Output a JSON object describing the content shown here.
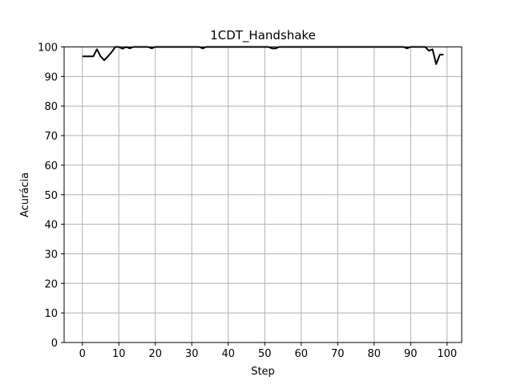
{
  "chart_data": {
    "type": "line",
    "title": "1CDT_Handshake",
    "xlabel": "Step",
    "ylabel": "Acurácia",
    "xlim": [
      -5,
      104
    ],
    "ylim": [
      0,
      100
    ],
    "xticks": [
      0,
      10,
      20,
      30,
      40,
      50,
      60,
      70,
      80,
      90,
      100
    ],
    "yticks": [
      0,
      10,
      20,
      30,
      40,
      50,
      60,
      70,
      80,
      90,
      100
    ],
    "grid": true,
    "series": [
      {
        "color": "#000000",
        "x": [
          0,
          1,
          2,
          3,
          4,
          5,
          6,
          7,
          8,
          9,
          10,
          11,
          12,
          13,
          14,
          15,
          16,
          17,
          18,
          19,
          20,
          21,
          22,
          23,
          24,
          25,
          26,
          27,
          28,
          29,
          30,
          31,
          32,
          33,
          34,
          35,
          36,
          37,
          38,
          39,
          40,
          41,
          42,
          43,
          44,
          45,
          46,
          47,
          48,
          49,
          50,
          51,
          52,
          53,
          54,
          55,
          56,
          57,
          58,
          59,
          60,
          61,
          62,
          63,
          64,
          65,
          66,
          67,
          68,
          69,
          70,
          71,
          72,
          73,
          74,
          75,
          76,
          77,
          78,
          79,
          80,
          81,
          82,
          83,
          84,
          85,
          86,
          87,
          88,
          89,
          90,
          91,
          92,
          93,
          94,
          95,
          96,
          97,
          98,
          99
        ],
        "y": [
          96.8,
          96.8,
          96.8,
          96.8,
          99.2,
          96.8,
          95.5,
          96.8,
          98.2,
          100,
          100,
          99.4,
          100,
          99.5,
          100,
          100,
          100,
          100,
          100,
          99.5,
          100,
          100,
          100,
          100,
          100,
          100,
          100,
          100,
          100,
          100,
          100,
          100,
          100,
          99.5,
          100,
          100,
          100,
          100,
          100,
          100,
          100,
          100,
          100,
          100,
          100,
          100,
          100,
          100,
          100,
          100,
          100,
          100,
          99.5,
          99.5,
          100,
          100,
          100,
          100,
          100,
          100,
          100,
          100,
          100,
          100,
          100,
          100,
          100,
          100,
          100,
          100,
          100,
          100,
          100,
          100,
          100,
          100,
          100,
          100,
          100,
          100,
          100,
          100,
          100,
          100,
          100,
          100,
          100,
          100,
          100,
          99.5,
          100,
          100,
          100,
          100,
          100,
          98.7,
          99.2,
          94.2,
          97.4,
          97.4
        ]
      }
    ]
  }
}
